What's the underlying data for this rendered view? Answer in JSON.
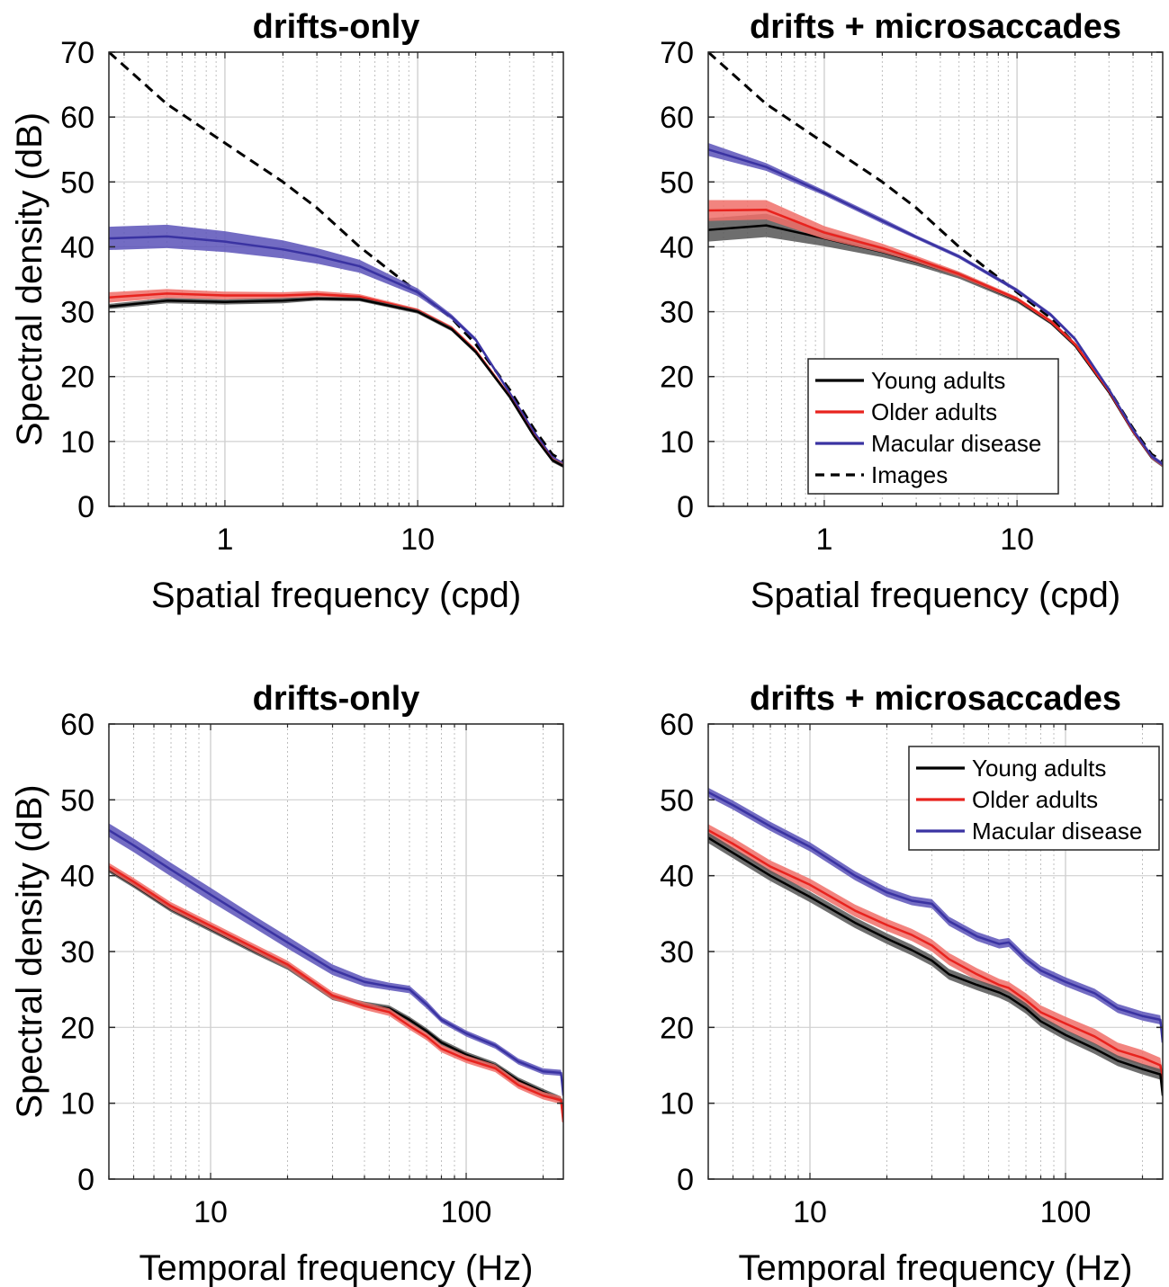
{
  "chart_data": [
    {
      "type": "line",
      "title": "drifts-only",
      "xlabel": "Spatial frequency (cpd)",
      "ylabel": "Spectral density (dB)",
      "xscale": "log",
      "xlim": [
        0.25,
        57
      ],
      "ylim": [
        0,
        70
      ],
      "yticks": [
        "0",
        "10",
        "20",
        "30",
        "40",
        "50",
        "60",
        "70"
      ],
      "xticks": [
        {
          "value": 1,
          "label": "1"
        },
        {
          "value": 10,
          "label": "10"
        }
      ],
      "grid": true,
      "legend": null,
      "series": [
        {
          "name": "Images",
          "color": "#000000",
          "dashed": true,
          "x": [
            0.25,
            0.5,
            1,
            2,
            3,
            5,
            10,
            15,
            20,
            30,
            40,
            50,
            57
          ],
          "y": [
            70,
            62,
            56,
            50,
            46,
            40,
            33,
            29,
            25,
            18,
            12,
            8,
            7
          ]
        },
        {
          "name": "Macular disease",
          "color": "#3a33a2",
          "band_color": "#5a52b8",
          "x": [
            0.25,
            0.5,
            1,
            2,
            3,
            5,
            10,
            15,
            20,
            30,
            40,
            50,
            57
          ],
          "y": [
            41.3,
            41.6,
            40.8,
            39.6,
            38.6,
            37.0,
            33.0,
            29.2,
            25.7,
            17.5,
            11.5,
            7.5,
            6.5
          ],
          "err": [
            1.8,
            1.8,
            1.6,
            1.4,
            1.2,
            1.0,
            0.6,
            0.4,
            0.3,
            0.3,
            0.3,
            0.3,
            0.3
          ]
        },
        {
          "name": "Older adults",
          "color": "#e8231e",
          "band_color": "#f06e68",
          "x": [
            0.25,
            0.5,
            1,
            2,
            3,
            5,
            10,
            15,
            20,
            30,
            40,
            50,
            57
          ],
          "y": [
            32.2,
            32.8,
            32.5,
            32.5,
            32.7,
            32.3,
            30.2,
            27.5,
            24.0,
            17.0,
            11.0,
            7.2,
            6.3
          ],
          "err": [
            0.8,
            0.7,
            0.6,
            0.5,
            0.5,
            0.4,
            0.3,
            0.3,
            0.3,
            0.3,
            0.3,
            0.3,
            0.3
          ]
        },
        {
          "name": "Young adults",
          "color": "#000000",
          "band_color": "#555555",
          "x": [
            0.25,
            0.5,
            1,
            2,
            3,
            5,
            10,
            15,
            20,
            30,
            40,
            50,
            57
          ],
          "y": [
            30.8,
            31.7,
            31.5,
            31.7,
            32.0,
            31.9,
            30.0,
            27.3,
            23.8,
            16.9,
            10.9,
            7.1,
            6.2
          ],
          "err": [
            0.4,
            0.4,
            0.4,
            0.4,
            0.3,
            0.3,
            0.3,
            0.3,
            0.3,
            0.3,
            0.3,
            0.3,
            0.3
          ]
        }
      ]
    },
    {
      "type": "line",
      "title": "drifts + microsaccades",
      "xlabel": "Spatial frequency (cpd)",
      "ylabel": "",
      "xscale": "log",
      "xlim": [
        0.25,
        57
      ],
      "ylim": [
        0,
        70
      ],
      "yticks": [
        "0",
        "10",
        "20",
        "30",
        "40",
        "50",
        "60",
        "70"
      ],
      "xticks": [
        {
          "value": 1,
          "label": "1"
        },
        {
          "value": 10,
          "label": "10"
        }
      ],
      "grid": true,
      "legend": {
        "position": "bottom-right",
        "entries": [
          "Young adults",
          "Older adults",
          "Macular disease",
          "Images"
        ]
      },
      "series": [
        {
          "name": "Images",
          "color": "#000000",
          "dashed": true,
          "x": [
            0.25,
            0.5,
            1,
            2,
            3,
            5,
            10,
            15,
            20,
            30,
            40,
            50,
            57
          ],
          "y": [
            70,
            62,
            56,
            50,
            46,
            40,
            33,
            29,
            25,
            18,
            12,
            8,
            7
          ]
        },
        {
          "name": "Young adults",
          "color": "#000000",
          "band_color": "#555555",
          "x": [
            0.25,
            0.5,
            1,
            2,
            3,
            5,
            10,
            15,
            20,
            30,
            40,
            50,
            57
          ],
          "y": [
            42.6,
            43.3,
            41.3,
            39.2,
            37.7,
            35.6,
            31.8,
            28.3,
            24.8,
            17.6,
            11.5,
            7.5,
            6.3
          ],
          "err": [
            1.8,
            1.8,
            1.2,
            0.8,
            0.6,
            0.5,
            0.4,
            0.3,
            0.3,
            0.3,
            0.3,
            0.3,
            0.3
          ]
        },
        {
          "name": "Older adults",
          "color": "#e8231e",
          "band_color": "#f06e68",
          "x": [
            0.25,
            0.5,
            1,
            2,
            3,
            5,
            10,
            15,
            20,
            30,
            40,
            50,
            57
          ],
          "y": [
            45.6,
            45.7,
            42.2,
            39.8,
            38.1,
            35.8,
            32.0,
            28.5,
            25.0,
            17.8,
            11.6,
            7.6,
            6.4
          ],
          "err": [
            1.6,
            1.5,
            1.0,
            0.7,
            0.5,
            0.4,
            0.3,
            0.3,
            0.3,
            0.3,
            0.3,
            0.3,
            0.3
          ]
        },
        {
          "name": "Macular disease",
          "color": "#3a33a2",
          "band_color": "#5a52b8",
          "x": [
            0.25,
            0.5,
            1,
            2,
            3,
            5,
            10,
            15,
            20,
            30,
            40,
            50,
            57
          ],
          "y": [
            55.0,
            52.3,
            48.3,
            44.0,
            41.5,
            38.5,
            33.3,
            29.5,
            25.8,
            18.0,
            11.8,
            7.7,
            6.5
          ],
          "err": [
            1.0,
            0.6,
            0.4,
            0.4,
            0.3,
            0.3,
            0.3,
            0.3,
            0.3,
            0.3,
            0.3,
            0.3,
            0.3
          ]
        }
      ]
    },
    {
      "type": "line",
      "title": "drifts-only",
      "xlabel": "Temporal frequency (Hz)",
      "ylabel": "Spectral density (dB)",
      "xscale": "log",
      "xlim": [
        4,
        240
      ],
      "ylim": [
        0,
        60
      ],
      "yticks": [
        "0",
        "10",
        "20",
        "30",
        "40",
        "50",
        "60"
      ],
      "xticks": [
        {
          "value": 10,
          "label": "10"
        },
        {
          "value": 100,
          "label": "100"
        }
      ],
      "grid": true,
      "legend": null,
      "series": [
        {
          "name": "Macular disease",
          "color": "#3a33a2",
          "band_color": "#5a52b8",
          "x": [
            4,
            5,
            7,
            10,
            15,
            20,
            30,
            40,
            50,
            60,
            70,
            80,
            100,
            130,
            160,
            200,
            235,
            240
          ],
          "y": [
            46.0,
            44.0,
            40.8,
            37.5,
            33.8,
            31.2,
            27.6,
            26.0,
            25.4,
            25.0,
            23.0,
            21.0,
            19.2,
            17.6,
            15.5,
            14.2,
            14.0,
            11.0
          ],
          "err": [
            0.9,
            0.9,
            0.9,
            0.9,
            0.8,
            0.8,
            0.7,
            0.6,
            0.5,
            0.5,
            0.5,
            0.4,
            0.4,
            0.4,
            0.4,
            0.4,
            0.4,
            0.4
          ]
        },
        {
          "name": "Young adults",
          "color": "#000000",
          "band_color": "#555555",
          "x": [
            4,
            5,
            7,
            10,
            15,
            20,
            30,
            40,
            50,
            60,
            70,
            80,
            100,
            130,
            160,
            200,
            235,
            240
          ],
          "y": [
            40.8,
            38.8,
            35.6,
            33.0,
            30.0,
            28.0,
            24.0,
            23.0,
            22.5,
            21.0,
            19.5,
            18.0,
            16.4,
            15.0,
            13.0,
            11.5,
            10.5,
            8.0
          ],
          "err": [
            0.4,
            0.4,
            0.4,
            0.4,
            0.4,
            0.4,
            0.4,
            0.4,
            0.4,
            0.4,
            0.4,
            0.4,
            0.4,
            0.4,
            0.4,
            0.4,
            0.4,
            0.4
          ]
        },
        {
          "name": "Older adults",
          "color": "#e8231e",
          "band_color": "#f06e68",
          "x": [
            4,
            5,
            7,
            10,
            15,
            20,
            30,
            40,
            50,
            60,
            70,
            80,
            100,
            130,
            160,
            200,
            235,
            240
          ],
          "y": [
            41.2,
            39.2,
            36.0,
            33.4,
            30.4,
            28.3,
            24.2,
            22.8,
            22.0,
            20.2,
            18.8,
            17.2,
            15.8,
            14.6,
            12.4,
            11.0,
            10.4,
            7.5
          ],
          "err": [
            0.5,
            0.5,
            0.5,
            0.5,
            0.5,
            0.5,
            0.5,
            0.5,
            0.5,
            0.5,
            0.5,
            0.5,
            0.5,
            0.5,
            0.5,
            0.5,
            0.5,
            0.5
          ]
        }
      ]
    },
    {
      "type": "line",
      "title": "drifts + microsaccades",
      "xlabel": "Temporal frequency (Hz)",
      "ylabel": "",
      "xscale": "log",
      "xlim": [
        4,
        240
      ],
      "ylim": [
        0,
        60
      ],
      "yticks": [
        "0",
        "10",
        "20",
        "30",
        "40",
        "50",
        "60"
      ],
      "xticks": [
        {
          "value": 10,
          "label": "10"
        },
        {
          "value": 100,
          "label": "100"
        }
      ],
      "grid": true,
      "legend": {
        "position": "top-right",
        "entries": [
          "Young adults",
          "Older adults",
          "Macular disease"
        ]
      },
      "series": [
        {
          "name": "Macular disease",
          "color": "#3a33a2",
          "band_color": "#5a52b8",
          "x": [
            4,
            5,
            7,
            10,
            15,
            20,
            25,
            30,
            35,
            45,
            55,
            60,
            70,
            80,
            100,
            130,
            160,
            200,
            235,
            240
          ],
          "y": [
            51.0,
            49.3,
            46.5,
            43.8,
            40.0,
            37.8,
            36.7,
            36.3,
            34.0,
            32.0,
            31.0,
            31.2,
            29.0,
            27.5,
            26.0,
            24.5,
            22.5,
            21.5,
            21.0,
            18.0
          ],
          "err": [
            0.6,
            0.6,
            0.6,
            0.6,
            0.6,
            0.6,
            0.6,
            0.6,
            0.6,
            0.6,
            0.6,
            0.6,
            0.6,
            0.6,
            0.6,
            0.6,
            0.6,
            0.6,
            0.6,
            0.6
          ]
        },
        {
          "name": "Older adults",
          "color": "#e8231e",
          "band_color": "#f06e68",
          "x": [
            4,
            5,
            7,
            10,
            15,
            20,
            25,
            30,
            35,
            45,
            55,
            60,
            70,
            80,
            100,
            130,
            160,
            200,
            235,
            240
          ],
          "y": [
            46.0,
            44.2,
            41.2,
            38.8,
            35.4,
            33.5,
            32.2,
            30.8,
            29.0,
            27.0,
            25.6,
            25.2,
            23.6,
            22.0,
            20.5,
            18.8,
            17.0,
            16.0,
            15.0,
            13.0
          ],
          "err": [
            0.8,
            0.8,
            0.8,
            0.8,
            0.8,
            0.8,
            0.8,
            0.8,
            0.8,
            0.8,
            0.8,
            0.8,
            0.9,
            0.9,
            0.9,
            1.0,
            1.0,
            1.0,
            1.0,
            1.0
          ]
        },
        {
          "name": "Young adults",
          "color": "#000000",
          "band_color": "#555555",
          "x": [
            4,
            5,
            7,
            10,
            15,
            20,
            25,
            30,
            35,
            45,
            55,
            60,
            70,
            80,
            100,
            130,
            160,
            200,
            235,
            240
          ],
          "y": [
            45.0,
            43.0,
            40.0,
            37.2,
            33.8,
            31.7,
            30.2,
            28.8,
            27.0,
            25.6,
            24.6,
            24.0,
            22.5,
            20.8,
            19.0,
            17.2,
            15.6,
            14.5,
            13.8,
            11.0
          ],
          "err": [
            0.7,
            0.7,
            0.7,
            0.7,
            0.7,
            0.7,
            0.7,
            0.7,
            0.7,
            0.7,
            0.7,
            0.7,
            0.7,
            0.7,
            0.7,
            0.7,
            0.7,
            0.7,
            0.7,
            0.7
          ]
        }
      ]
    }
  ]
}
